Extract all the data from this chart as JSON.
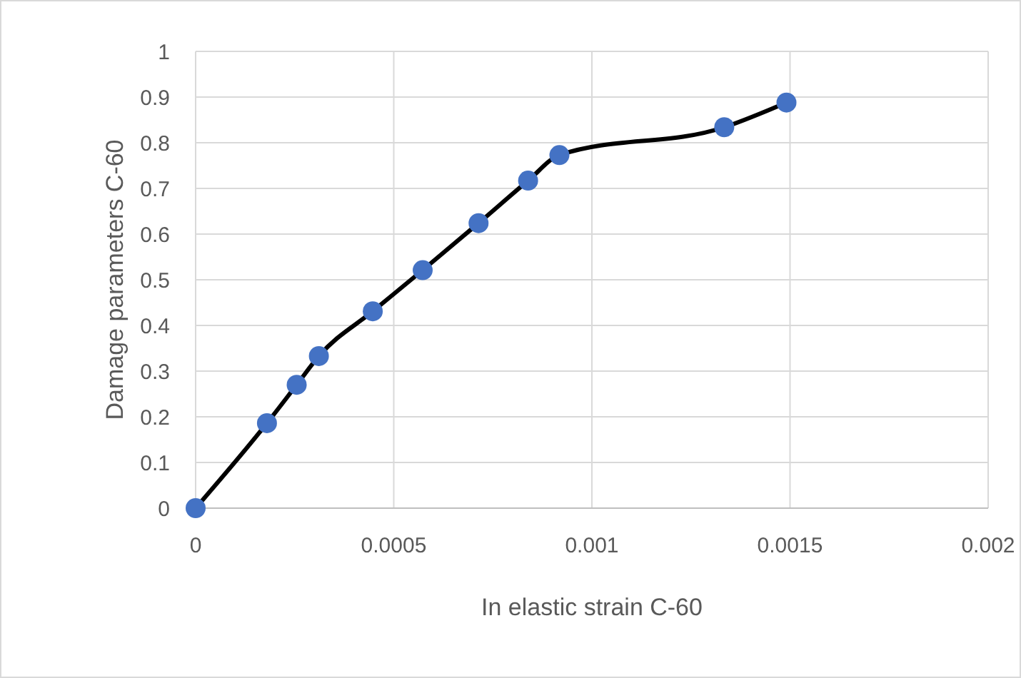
{
  "chart_data": {
    "type": "line",
    "xlabel": "In elastic strain C-60",
    "ylabel": "Damage parameters C-60",
    "x": [
      0,
      0.00018,
      0.000255,
      0.000311,
      0.000447,
      0.000573,
      0.000714,
      0.000839,
      0.000918,
      0.001334,
      0.001491
    ],
    "series": [
      {
        "color": "#4472c4",
        "values": [
          0,
          0.186,
          0.27,
          0.333,
          0.431,
          0.521,
          0.624,
          0.717,
          0.773,
          0.834,
          0.888
        ]
      }
    ],
    "xlim": [
      0,
      0.002
    ],
    "xticks": [
      0,
      0.0005,
      0.001,
      0.0015,
      0.002
    ],
    "ylim": [
      0,
      1
    ],
    "yticks": [
      0,
      0.1,
      0.2,
      0.3,
      0.4,
      0.5,
      0.6,
      0.7,
      0.8,
      0.9,
      1
    ],
    "grid": true,
    "marker": "circle",
    "line_style": "solid"
  }
}
